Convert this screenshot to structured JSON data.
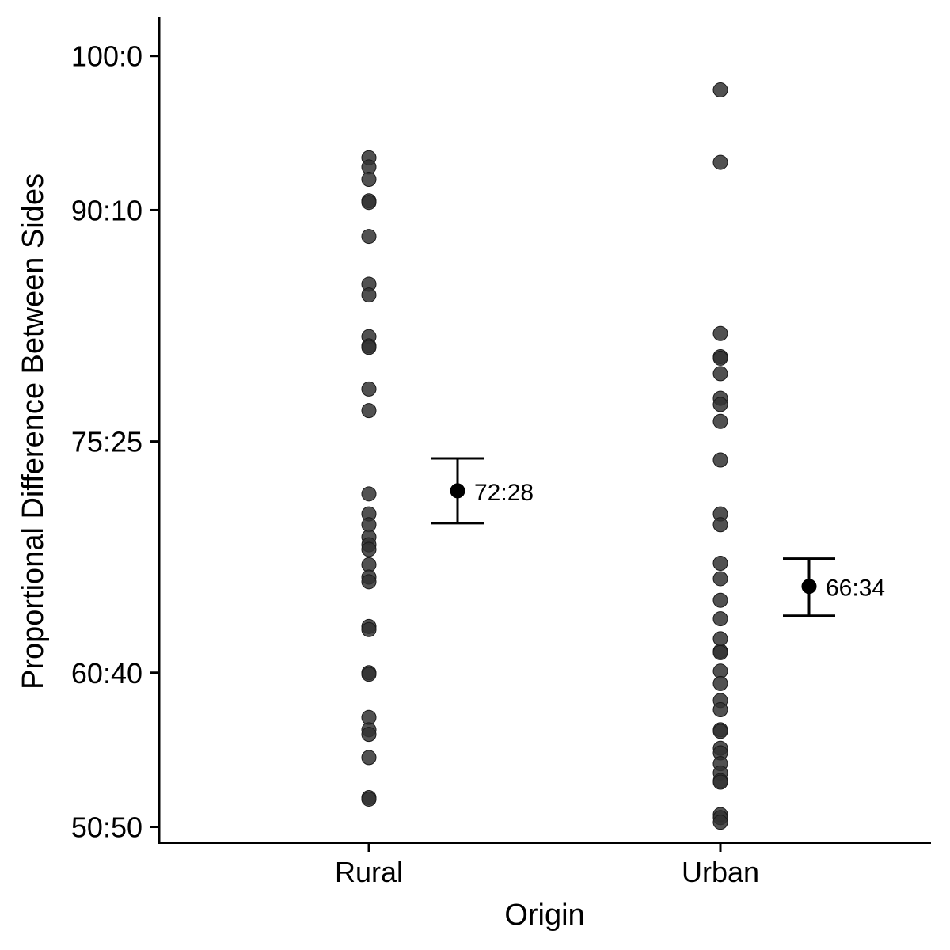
{
  "chart_data": {
    "type": "scatter",
    "xlabel": "Origin",
    "ylabel": "Proportional Difference Between Sides",
    "categories": [
      "Rural",
      "Urban"
    ],
    "ylim": [
      49,
      102.5
    ],
    "yticks": [
      {
        "value": 50,
        "label": "50:50"
      },
      {
        "value": 60,
        "label": "60:40"
      },
      {
        "value": 75,
        "label": "75:25"
      },
      {
        "value": 90,
        "label": "90:10"
      },
      {
        "value": 100,
        "label": "100:0"
      }
    ],
    "grid": false,
    "series": [
      {
        "category": "Rural",
        "points": [
          93.4,
          92.8,
          92.0,
          90.6,
          90.5,
          88.3,
          85.2,
          84.5,
          81.8,
          81.2,
          81.1,
          78.4,
          77.0,
          71.6,
          70.3,
          69.6,
          68.8,
          68.3,
          68.0,
          67.0,
          66.2,
          65.9,
          63.0,
          62.8,
          60.0,
          59.9,
          57.1,
          56.3,
          56.0,
          54.5,
          51.9,
          51.8
        ],
        "mean": 71.8,
        "ci": [
          69.7,
          73.9
        ],
        "mean_label": "72:28"
      },
      {
        "category": "Urban",
        "points": [
          97.8,
          93.1,
          82.0,
          80.5,
          80.4,
          79.4,
          77.8,
          77.4,
          76.3,
          73.8,
          70.3,
          69.6,
          67.1,
          66.1,
          64.7,
          63.5,
          62.2,
          61.4,
          61.3,
          60.1,
          59.3,
          58.2,
          57.6,
          56.3,
          56.2,
          55.1,
          54.8,
          54.1,
          53.5,
          53.0,
          52.9,
          50.8,
          50.6,
          50.3
        ],
        "mean": 65.6,
        "ci": [
          63.7,
          67.4
        ],
        "mean_label": "66:34"
      }
    ]
  }
}
